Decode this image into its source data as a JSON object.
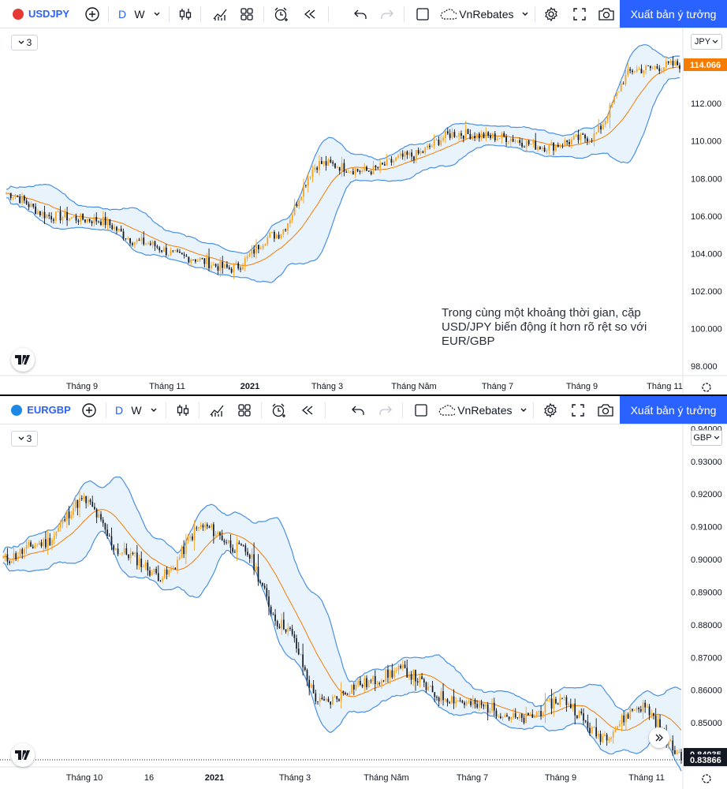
{
  "panels": [
    {
      "symbol": "USDJPY",
      "interval_d": "D",
      "interval_w": "W",
      "layout_name": "VnRebates",
      "publish_label": "Xuất bản ý tưởng",
      "legend_count": "3",
      "currency": "JPY",
      "logo_color": "#e53935"
    },
    {
      "symbol": "EURGBP",
      "interval_d": "D",
      "interval_w": "W",
      "layout_name": "VnRebates",
      "publish_label": "Xuất bản ý tưởng",
      "legend_count": "3",
      "currency": "GBP",
      "logo_color": "#1e88e5"
    }
  ],
  "annotation": "Trong cùng một khoảng thời gian, cặp USD/JPY biến động ít hơn rõ rệt so với EUR/GBP",
  "colors": {
    "accent": "#2962ff",
    "bull_candle": "#f7a21b",
    "bear_candle": "#131722",
    "bollinger_band": "#4a90e2",
    "band_fill": "#e3f0fb",
    "moving_average": "#f57c00",
    "price_label_usdjpy": "#f57c00",
    "price_label_eurgbp": "#131722"
  },
  "chart_data": [
    {
      "type": "candlestick",
      "title": "",
      "symbol": "USDJPY",
      "indicator": "Bollinger Bands with middle moving average",
      "ylim": [
        97.5,
        116
      ],
      "y_ticks": [
        "114.066",
        "112.000",
        "110.000",
        "108.000",
        "106.000",
        "104.000",
        "102.000",
        "100.000",
        "98.000"
      ],
      "x_ticks": [
        "Tháng 9",
        "Tháng 11",
        "2021",
        "Tháng 3",
        "Tháng Năm",
        "Tháng 7",
        "Tháng 9",
        "Tháng 11"
      ],
      "last_price": "114.066",
      "approx_close_path": [
        {
          "x": "Tháng 8",
          "y": 107.2
        },
        {
          "x": "Tháng 9",
          "y": 106.0
        },
        {
          "x": "Tháng 10",
          "y": 105.8
        },
        {
          "x": "Tháng 11",
          "y": 104.6
        },
        {
          "x": "Tháng 12",
          "y": 103.8
        },
        {
          "x": "2021",
          "y": 103.2
        },
        {
          "x": "Tháng 2",
          "y": 105.0
        },
        {
          "x": "Tháng 3",
          "y": 108.8
        },
        {
          "x": "Tháng 4",
          "y": 108.4
        },
        {
          "x": "Tháng Năm",
          "y": 109.2
        },
        {
          "x": "Tháng 6",
          "y": 110.4
        },
        {
          "x": "Tháng 7",
          "y": 110.2
        },
        {
          "x": "Tháng 8",
          "y": 109.7
        },
        {
          "x": "Tháng 9",
          "y": 110.2
        },
        {
          "x": "Tháng 10",
          "y": 113.8
        },
        {
          "x": "Tháng 11",
          "y": 114.066
        }
      ]
    },
    {
      "type": "candlestick",
      "title": "",
      "symbol": "EURGBP",
      "indicator": "Bollinger Bands with middle moving average",
      "ylim": [
        0.8365,
        0.9413
      ],
      "y_ticks": [
        "0.94000",
        "0.93000",
        "0.92000",
        "0.91000",
        "0.90000",
        "0.89000",
        "0.88000",
        "0.87000",
        "0.86000",
        "0.85000",
        "0.84035",
        "0.83866"
      ],
      "x_ticks": [
        "Tháng 10",
        "16",
        "2021",
        "Tháng 3",
        "Tháng Năm",
        "Tháng 7",
        "Tháng 9",
        "Tháng 11"
      ],
      "last_price": "0.84035",
      "low_marker": "0.83866",
      "approx_close_path": [
        {
          "x": "Tháng 9",
          "y": 0.9
        },
        {
          "x": "Tháng 10",
          "y": 0.905
        },
        {
          "x": "Tháng 10b",
          "y": 0.918
        },
        {
          "x": "Tháng 11",
          "y": 0.902
        },
        {
          "x": "16",
          "y": 0.895
        },
        {
          "x": "Tháng 12",
          "y": 0.91
        },
        {
          "x": "2021",
          "y": 0.903
        },
        {
          "x": "Tháng 2",
          "y": 0.88
        },
        {
          "x": "Tháng 3",
          "y": 0.856
        },
        {
          "x": "Tháng 4",
          "y": 0.862
        },
        {
          "x": "Tháng Năm",
          "y": 0.866
        },
        {
          "x": "Tháng 6",
          "y": 0.858
        },
        {
          "x": "Tháng 7",
          "y": 0.855
        },
        {
          "x": "Tháng 8",
          "y": 0.851
        },
        {
          "x": "Tháng 9",
          "y": 0.857
        },
        {
          "x": "Tháng 10",
          "y": 0.846
        },
        {
          "x": "Tháng 11",
          "y": 0.855
        },
        {
          "x": "Tháng 12",
          "y": 0.84035
        }
      ]
    }
  ]
}
